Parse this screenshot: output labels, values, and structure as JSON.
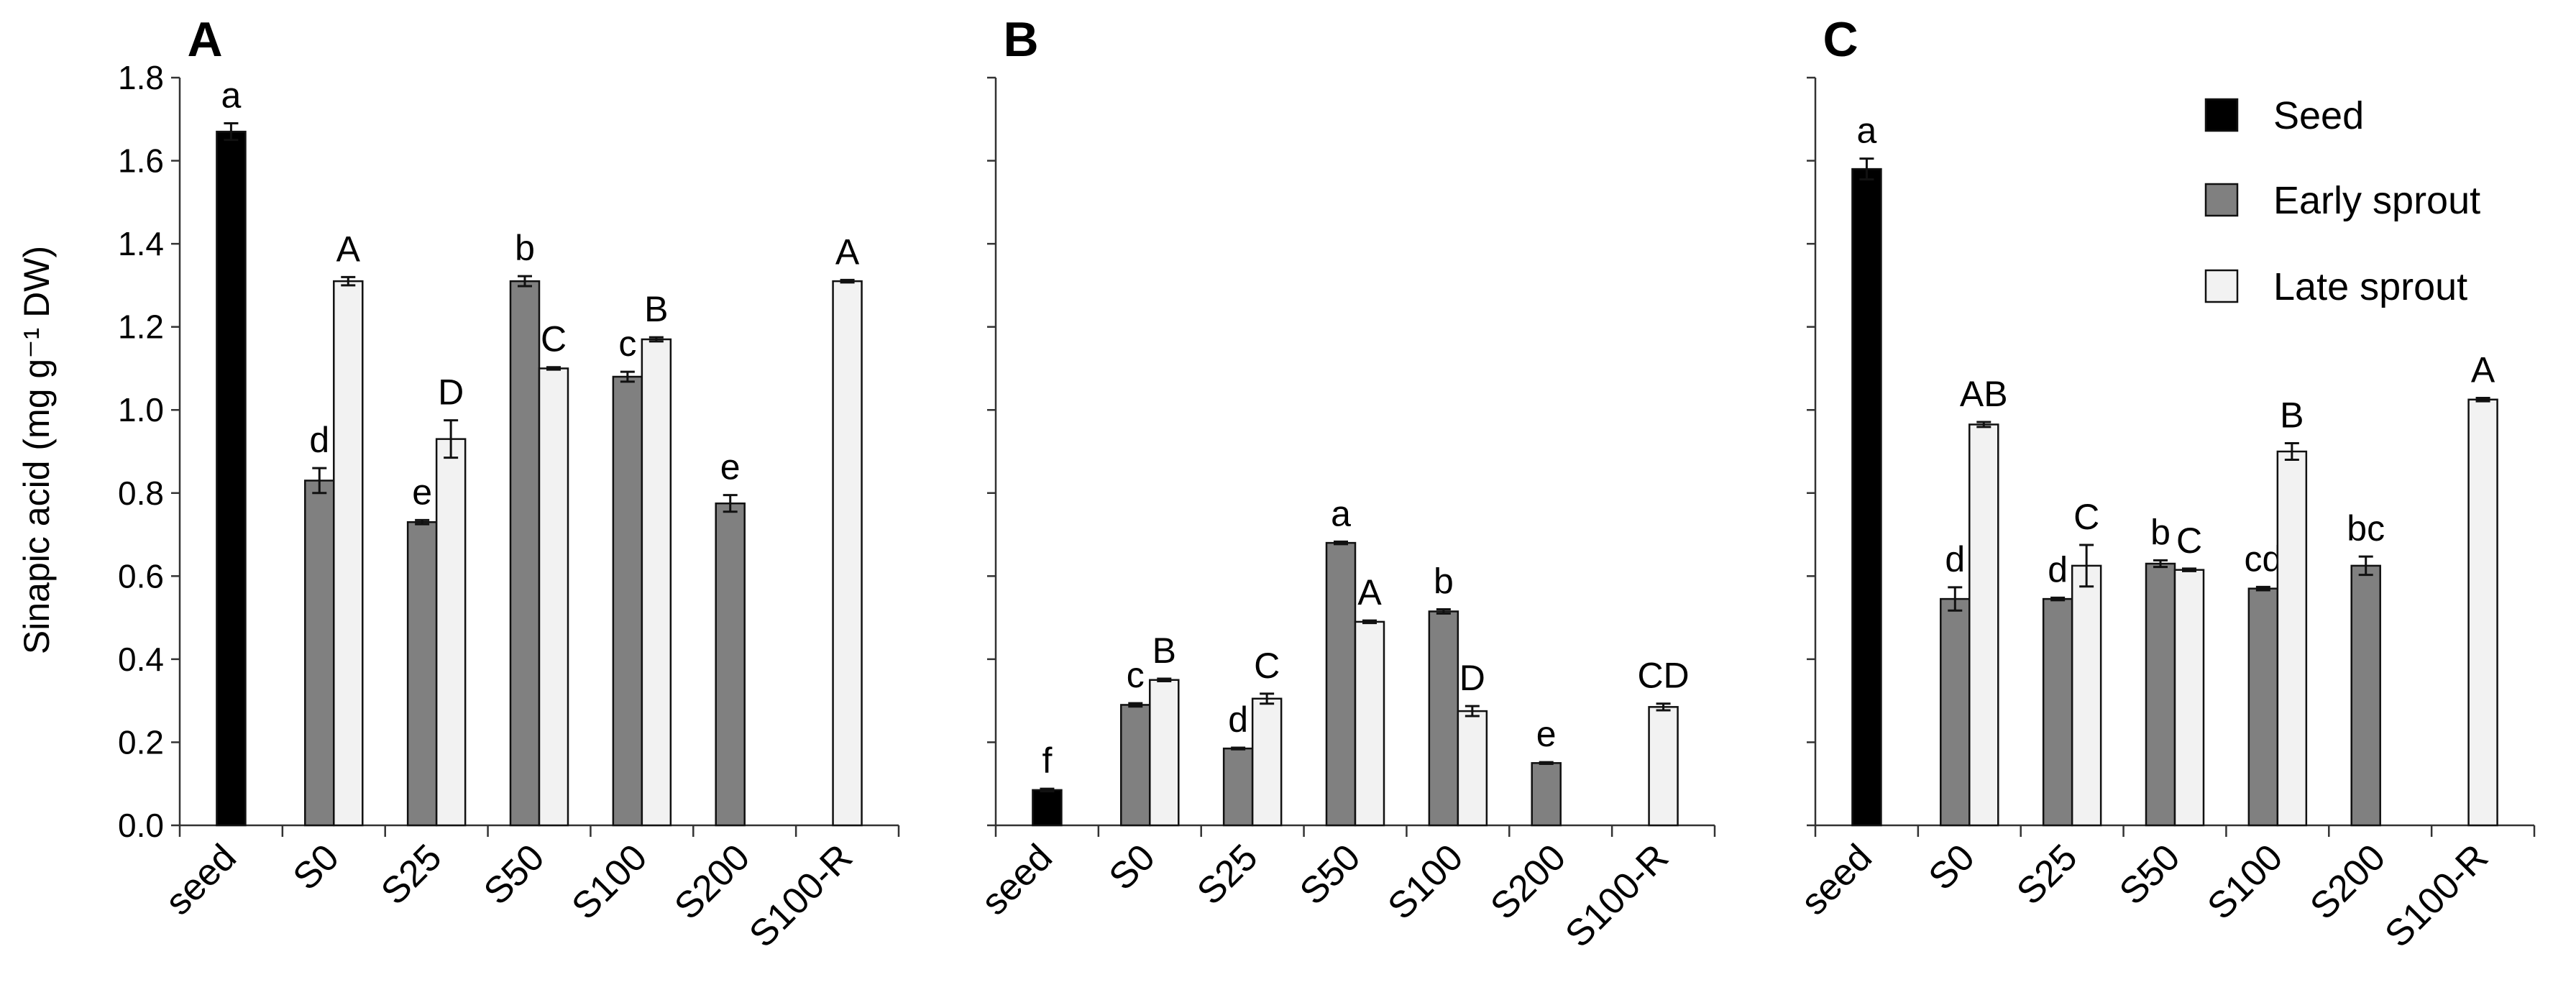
{
  "legend": [
    {
      "name": "Seed",
      "color": "#000000"
    },
    {
      "name": "Early sprout",
      "color": "#808080"
    },
    {
      "name": "Late sprout",
      "color": "#f2f2f2"
    }
  ],
  "chart_data": [
    {
      "type": "bar",
      "panel": "A",
      "title": "",
      "xlabel": "",
      "ylabel": "Sinapic acid (mg g⁻¹ DW)",
      "ylim": [
        0,
        1.8
      ],
      "yticks": [
        "0.0",
        "0.2",
        "0.4",
        "0.6",
        "0.8",
        "1.0",
        "1.2",
        "1.4",
        "1.6",
        "1.8"
      ],
      "categories": [
        "seed",
        "S0",
        "S25",
        "S50",
        "S100",
        "S200",
        "S100-R"
      ],
      "series": [
        {
          "name": "Seed",
          "values": [
            1.67,
            null,
            null,
            null,
            null,
            null,
            null
          ],
          "errors": [
            0.02,
            null,
            null,
            null,
            null,
            null,
            null
          ],
          "labels": [
            "a",
            null,
            null,
            null,
            null,
            null,
            null
          ]
        },
        {
          "name": "Early sprout",
          "values": [
            null,
            0.83,
            0.73,
            1.31,
            1.08,
            0.775,
            null
          ],
          "errors": [
            null,
            0.03,
            0.005,
            0.012,
            0.012,
            0.02,
            null
          ],
          "labels": [
            null,
            "d",
            "e",
            "b",
            "c",
            "e",
            null
          ]
        },
        {
          "name": "Late sprout",
          "values": [
            null,
            1.31,
            0.93,
            1.1,
            1.17,
            null,
            1.31
          ],
          "errors": [
            null,
            0.01,
            0.045,
            0.003,
            0.005,
            null,
            0.003
          ],
          "labels": [
            null,
            "A",
            "D",
            "C",
            "B",
            null,
            "A"
          ]
        }
      ]
    },
    {
      "type": "bar",
      "panel": "B",
      "title": "",
      "xlabel": "",
      "ylabel": "",
      "ylim": [
        0,
        1.8
      ],
      "categories": [
        "seed",
        "S0",
        "S25",
        "S50",
        "S100",
        "S200",
        "S100-R"
      ],
      "series": [
        {
          "name": "Seed",
          "values": [
            0.085,
            null,
            null,
            null,
            null,
            null,
            null
          ],
          "errors": [
            0.003,
            null,
            null,
            null,
            null,
            null,
            null
          ],
          "labels": [
            "f",
            null,
            null,
            null,
            null,
            null,
            null
          ]
        },
        {
          "name": "Early sprout",
          "values": [
            null,
            0.29,
            0.185,
            0.68,
            0.515,
            0.15,
            null
          ],
          "errors": [
            null,
            0.004,
            0.002,
            0.003,
            0.005,
            0.002,
            null
          ],
          "labels": [
            null,
            "c",
            "d",
            "a",
            "b",
            "e",
            null
          ]
        },
        {
          "name": "Late sprout",
          "values": [
            null,
            0.35,
            0.305,
            0.49,
            0.275,
            null,
            0.285
          ],
          "errors": [
            null,
            0.003,
            0.012,
            0.003,
            0.012,
            null,
            0.008
          ],
          "labels": [
            null,
            "B",
            "C",
            "A",
            "D",
            null,
            "CD"
          ]
        }
      ]
    },
    {
      "type": "bar",
      "panel": "C",
      "title": "",
      "xlabel": "",
      "ylabel": "",
      "ylim": [
        0,
        1.8
      ],
      "categories": [
        "seed",
        "S0",
        "S25",
        "S50",
        "S100",
        "S200",
        "S100-R"
      ],
      "series": [
        {
          "name": "Seed",
          "values": [
            1.58,
            null,
            null,
            null,
            null,
            null,
            null
          ],
          "errors": [
            0.025,
            null,
            null,
            null,
            null,
            null,
            null
          ],
          "labels": [
            "a",
            null,
            null,
            null,
            null,
            null,
            null
          ]
        },
        {
          "name": "Early sprout",
          "values": [
            null,
            0.545,
            0.545,
            0.63,
            0.57,
            0.625,
            null
          ],
          "errors": [
            null,
            0.028,
            0.003,
            0.008,
            0.004,
            0.022,
            null
          ],
          "labels": [
            null,
            "d",
            "d",
            "b",
            "cd",
            "bc",
            null
          ]
        },
        {
          "name": "Late sprout",
          "values": [
            null,
            0.965,
            0.625,
            0.615,
            0.9,
            null,
            1.025
          ],
          "errors": [
            null,
            0.006,
            0.05,
            0.003,
            0.02,
            null,
            0.004
          ],
          "labels": [
            null,
            "AB",
            "C",
            "C",
            "B",
            null,
            "A"
          ]
        }
      ]
    }
  ]
}
